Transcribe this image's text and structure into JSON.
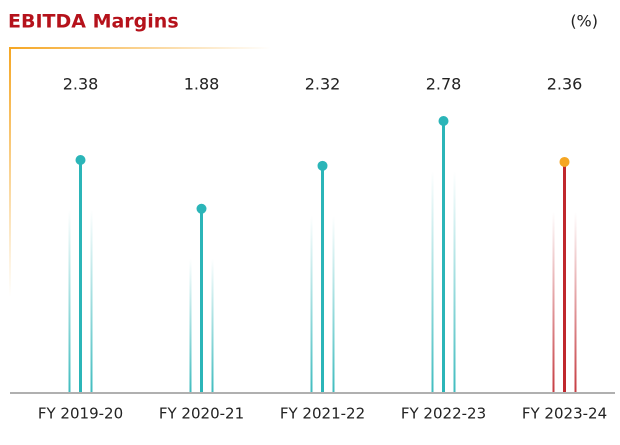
{
  "chart_data": {
    "type": "lollipop",
    "title": "EBITDA Margins",
    "unit_label": "(%)",
    "categories": [
      "FY 2019-20",
      "FY 2020-21",
      "FY 2021-22",
      "FY 2022-23",
      "FY 2023-24"
    ],
    "values": [
      2.38,
      1.88,
      2.32,
      2.78,
      2.36
    ],
    "colors": [
      "#2bb5b8",
      "#2bb5b8",
      "#2bb5b8",
      "#2bb5b8",
      "#f5a623"
    ],
    "stem_colors": [
      "#2bb5b8",
      "#2bb5b8",
      "#2bb5b8",
      "#2bb5b8",
      "#c0272d"
    ]
  }
}
